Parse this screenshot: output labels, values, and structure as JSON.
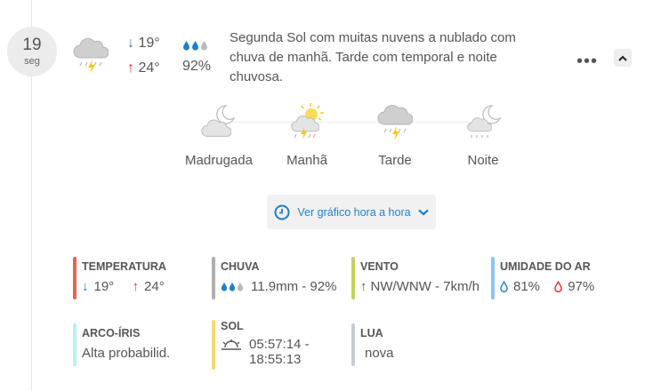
{
  "day": {
    "number": "19",
    "weekday": "seg"
  },
  "summary": {
    "icon": "cloud-rain-thunder-icon",
    "min": "19°",
    "max": "24°",
    "rain_drops_filled": 2,
    "rain_drops_total": 3,
    "rain_probability": "92%",
    "description": "Segunda Sol com muitas nuvens a nublado com chuva de manhã. Tarde com temporal e noite chuvosa."
  },
  "menu": {
    "icon": "more-options-icon"
  },
  "collapse": {
    "icon": "chevron-up-icon"
  },
  "periods": [
    {
      "label": "Madrugada",
      "icon": "moon-cloud-icon"
    },
    {
      "label": "Manhã",
      "icon": "sun-cloud-thunder-icon"
    },
    {
      "label": "Tarde",
      "icon": "cloud-thunder-icon"
    },
    {
      "label": "Noite",
      "icon": "moon-cloud-rain-icon"
    }
  ],
  "hourly_button": {
    "label": "Ver gráfico hora a hora",
    "icon": "clock-icon"
  },
  "details": {
    "temperature": {
      "title": "TEMPERATURA",
      "min": "19°",
      "max": "24°",
      "color": "#d9675a"
    },
    "rain": {
      "title": "CHUVA",
      "value": "11.9mm - 92%",
      "color": "#b0b0b0"
    },
    "wind": {
      "title": "VENTO",
      "value": "NW/WNW - 7km/h",
      "color": "#c2d162"
    },
    "humidity": {
      "title": "UMIDADE DO AR",
      "min": "81%",
      "max": "97%",
      "color": "#8cc4ef"
    },
    "rainbow": {
      "title": "ARCO-ÍRIS",
      "value": "Alta probabilid.",
      "color": "#bdeef0"
    },
    "sun": {
      "title": "SOL",
      "value": "05:57:14 - 18:55:13",
      "color": "#f6d77a"
    },
    "moon": {
      "title": "LUA",
      "value": "nova",
      "color": "#c7ccd1"
    }
  },
  "colors": {
    "accent": "#1f7fc7",
    "max": "#dd3333"
  }
}
